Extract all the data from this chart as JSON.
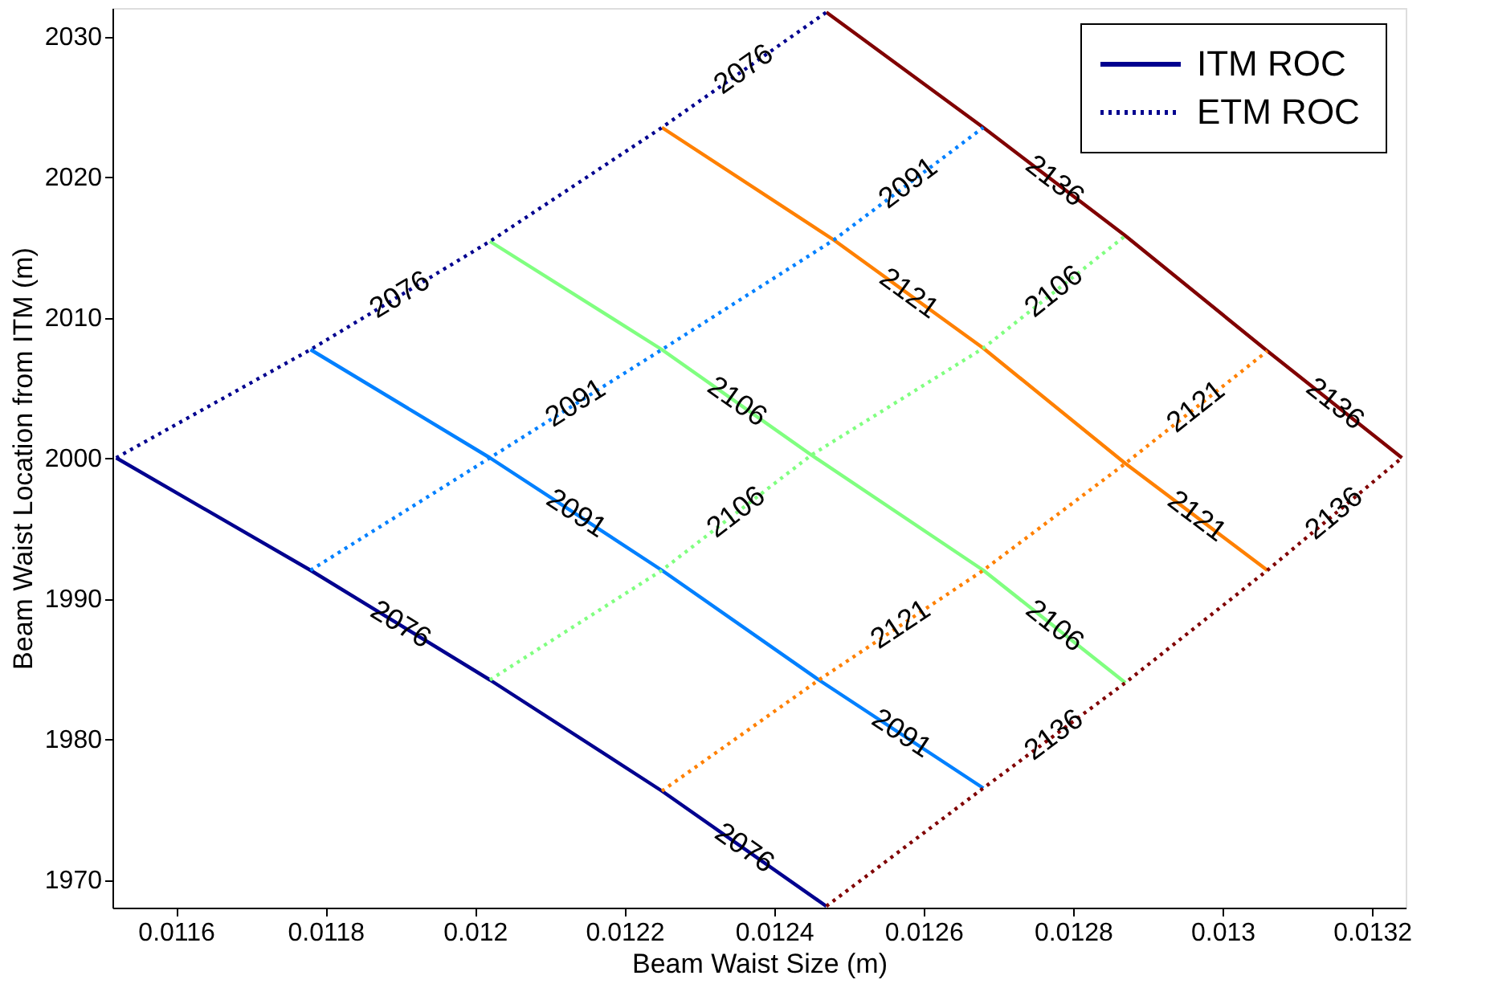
{
  "chart_data": {
    "type": "line",
    "xlabel": "Beam Waist Size (m)",
    "ylabel": "Beam Waist Location from ITM (m)",
    "xlim": [
      0.011515,
      0.013245
    ],
    "ylim": [
      1968,
      2032
    ],
    "xticks": [
      0.0116,
      0.0118,
      0.012,
      0.0122,
      0.0124,
      0.0126,
      0.0128,
      0.013,
      0.0132
    ],
    "yticks": [
      1970,
      1980,
      1990,
      2000,
      2010,
      2020,
      2030
    ],
    "grid": false,
    "marker": "none",
    "legend": "top right",
    "annotations": [
      "ITM ROC",
      "ETM ROC"
    ],
    "series": [
      {
        "name": "2076",
        "color": "#00008f",
        "line_style": "solid",
        "x": [
          0.01152,
          0.01178,
          0.01202,
          0.01225,
          0.01247
        ],
        "values": [
          2000,
          1992,
          1984.2,
          1976.3,
          1968.1
        ]
      },
      {
        "name": "2091",
        "color": "#0080ff",
        "line_style": "solid",
        "x": [
          0.01178,
          0.01202,
          0.01225,
          0.01246,
          0.01268
        ],
        "values": [
          2007.7,
          2000,
          1992,
          1984.2,
          1976.5
        ]
      },
      {
        "name": "2106",
        "color": "#80ff80",
        "line_style": "solid",
        "x": [
          0.01202,
          0.01225,
          0.01245,
          0.01268,
          0.01287
        ],
        "values": [
          2015.4,
          2007.7,
          2000.2,
          1992,
          1984
        ]
      },
      {
        "name": "2121",
        "color": "#ff8000",
        "line_style": "solid",
        "x": [
          0.01225,
          0.01248,
          0.01268,
          0.01287,
          0.01306
        ],
        "values": [
          2023.5,
          2015.5,
          2007.8,
          1999.6,
          1992
        ]
      },
      {
        "name": "2136",
        "color": "#800000",
        "line_style": "solid",
        "x": [
          0.01247,
          0.01268,
          0.01287,
          0.01306,
          0.01324
        ],
        "values": [
          2031.7,
          2023.5,
          2015.8,
          2007.6,
          2000
        ]
      },
      {
        "name": "2076",
        "color": "#00008f",
        "line_style": "dotted",
        "x": [
          0.01152,
          0.01178,
          0.01202,
          0.01225,
          0.01247
        ],
        "values": [
          2000,
          2007.7,
          2015.4,
          2023.5,
          2031.7
        ]
      },
      {
        "name": "2091",
        "color": "#0080ff",
        "line_style": "dotted",
        "x": [
          0.01178,
          0.01202,
          0.01225,
          0.01248,
          0.01268
        ],
        "values": [
          1992,
          2000,
          2007.7,
          2015.5,
          2023.5
        ]
      },
      {
        "name": "2106",
        "color": "#80ff80",
        "line_style": "dotted",
        "x": [
          0.01202,
          0.01225,
          0.01245,
          0.01268,
          0.01287
        ],
        "values": [
          1984.2,
          1992,
          2000.2,
          2007.8,
          2015.8
        ]
      },
      {
        "name": "2121",
        "color": "#ff8000",
        "line_style": "dotted",
        "x": [
          0.01225,
          0.01246,
          0.01268,
          0.01287,
          0.01306
        ],
        "values": [
          1976.3,
          1984.2,
          1992,
          1999.6,
          2007.6
        ]
      },
      {
        "name": "2136",
        "color": "#800000",
        "line_style": "dotted",
        "x": [
          0.01247,
          0.01268,
          0.01287,
          0.01306,
          0.01324
        ],
        "values": [
          1968.1,
          1976.5,
          1984,
          1992,
          2000
        ]
      }
    ]
  }
}
